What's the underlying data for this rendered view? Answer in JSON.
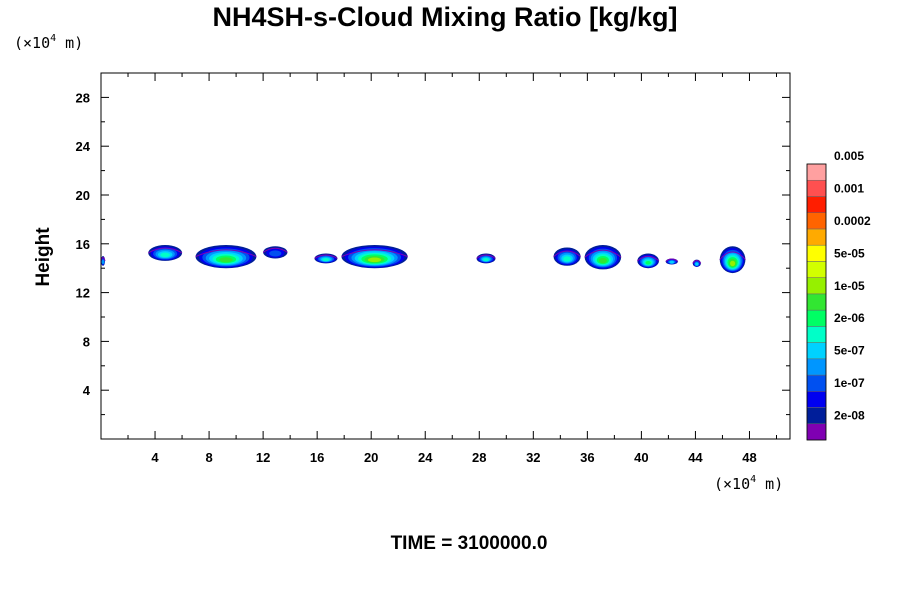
{
  "chart_data": {
    "type": "heatmap",
    "title": "NH4SH-s-Cloud Mixing Ratio [kg/kg]",
    "ylabel": "Height",
    "x_unit_base": "(×10",
    "x_unit_exp": "4",
    "x_unit_tail": " m)",
    "y_unit_base": "(×10",
    "y_unit_exp": "4",
    "y_unit_tail": " m)",
    "xlim": [
      0,
      51
    ],
    "ylim": [
      0,
      30
    ],
    "x_ticks": [
      4,
      8,
      12,
      16,
      20,
      24,
      28,
      32,
      36,
      40,
      44,
      48
    ],
    "y_ticks": [
      4,
      8,
      12,
      16,
      20,
      24,
      28
    ],
    "time_label": "TIME = 3100000.0",
    "colorbar": {
      "colors": [
        "#7f00b2",
        "#001e9a",
        "#0000f0",
        "#0050f0",
        "#0096ff",
        "#00d2ff",
        "#00ffc8",
        "#00ff64",
        "#32e632",
        "#96f000",
        "#d2ff00",
        "#ffff00",
        "#ffaa00",
        "#ff6400",
        "#ff1e00",
        "#ff5050",
        "#ffa0a0"
      ],
      "labels": [
        "2e-08",
        "1e-07",
        "5e-07",
        "2e-06",
        "1e-05",
        "5e-05",
        "0.0002",
        "0.001",
        "0.005"
      ]
    },
    "clouds": [
      {
        "x0": 0.0,
        "x1": 0.3,
        "ytop": 15.0,
        "ybot": 14.2,
        "level": 4
      },
      {
        "x0": 3.5,
        "x1": 6.0,
        "ytop": 15.9,
        "ybot": 14.6,
        "level": 6
      },
      {
        "x0": 7.0,
        "x1": 11.5,
        "ytop": 15.9,
        "ybot": 14.0,
        "level": 8
      },
      {
        "x0": 12.0,
        "x1": 13.8,
        "ytop": 15.8,
        "ybot": 14.8,
        "level": 3
      },
      {
        "x0": 15.8,
        "x1": 17.5,
        "ytop": 15.2,
        "ybot": 14.4,
        "level": 6
      },
      {
        "x0": 17.8,
        "x1": 22.7,
        "ytop": 15.9,
        "ybot": 14.0,
        "level": 9
      },
      {
        "x0": 27.8,
        "x1": 29.2,
        "ytop": 15.2,
        "ybot": 14.4,
        "level": 6
      },
      {
        "x0": 33.5,
        "x1": 35.5,
        "ytop": 15.7,
        "ybot": 14.2,
        "level": 6
      },
      {
        "x0": 35.8,
        "x1": 38.5,
        "ytop": 15.9,
        "ybot": 13.9,
        "level": 8
      },
      {
        "x0": 39.7,
        "x1": 41.3,
        "ytop": 15.2,
        "ybot": 14.0,
        "level": 7
      },
      {
        "x0": 41.8,
        "x1": 42.7,
        "ytop": 14.8,
        "ybot": 14.3,
        "level": 5
      },
      {
        "x0": 43.8,
        "x1": 44.4,
        "ytop": 14.7,
        "ybot": 14.1,
        "level": 5
      },
      {
        "x0": 45.8,
        "x1": 47.7,
        "ytop": 15.8,
        "ybot": 13.6,
        "level": 9
      }
    ]
  }
}
